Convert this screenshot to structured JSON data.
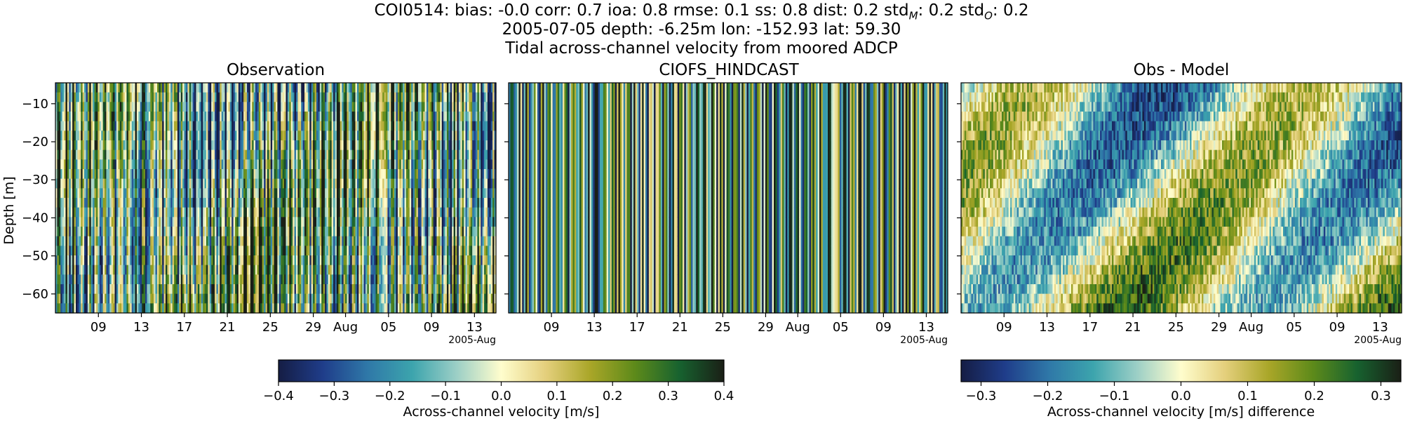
{
  "header": {
    "line1": "COI0514: bias: -0.0  corr: 0.7  ioa: 0.8  rmse: 0.1  ss: 0.8  dist: 0.2  std",
    "line1_sub_m": "M",
    "line1_mid": ": 0.2  std",
    "line1_sub_o": "O",
    "line1_end": ": 0.2",
    "line2": "2005-07-05 depth: -6.25m lon: -152.93 lat: 59.30",
    "line3": "Tidal across-channel velocity from moored ADCP"
  },
  "colors": {
    "cmap_stops": [
      "#151d44",
      "#1f3d8a",
      "#2f78a8",
      "#3ca4ad",
      "#9ccfc6",
      "#fffdcd",
      "#e4cf7c",
      "#a9a628",
      "#5d8a1a",
      "#17622f",
      "#1a1f16"
    ]
  },
  "chart_data": [
    {
      "type": "heatmap",
      "title": "Observation",
      "ylabel": "Depth [m]",
      "ylim": [
        -65,
        -4.5
      ],
      "yticks": [
        -10,
        -20,
        -30,
        -40,
        -50,
        -60
      ],
      "ytick_labels": [
        "−10",
        "−20",
        "−30",
        "−40",
        "−50",
        "−60"
      ],
      "xlim": [
        "2005-07-05",
        "2005-08-15"
      ],
      "xticks": [
        "2005-07-09",
        "2005-07-13",
        "2005-07-17",
        "2005-07-21",
        "2005-07-25",
        "2005-07-29",
        "2005-08-01",
        "2005-08-05",
        "2005-08-09",
        "2005-08-13"
      ],
      "xtick_labels": [
        "09",
        "13",
        "17",
        "21",
        "25",
        "29",
        "Aug",
        "05",
        "09",
        "13"
      ],
      "x_offset_label": "2005-Aug",
      "clim": [
        -0.4,
        0.4
      ]
    },
    {
      "type": "heatmap",
      "title": "CIOFS_HINDCAST",
      "ylim": [
        -65,
        -4.5
      ],
      "xlim": [
        "2005-07-05",
        "2005-08-15"
      ],
      "xtick_labels": [
        "09",
        "13",
        "17",
        "21",
        "25",
        "29",
        "Aug",
        "05",
        "09",
        "13"
      ],
      "x_offset_label": "2005-Aug",
      "clim": [
        -0.4,
        0.4
      ]
    },
    {
      "type": "heatmap",
      "title": "Obs - Model",
      "ylim": [
        -65,
        -4.5
      ],
      "xlim": [
        "2005-07-05",
        "2005-08-15"
      ],
      "xtick_labels": [
        "09",
        "13",
        "17",
        "21",
        "25",
        "29",
        "Aug",
        "05",
        "09",
        "13"
      ],
      "x_offset_label": "2005-Aug",
      "clim": [
        -0.33,
        0.33
      ]
    }
  ],
  "colorbars": [
    {
      "label": "Across-channel velocity [m/s]",
      "range": [
        -0.4,
        0.4
      ],
      "ticks": [
        -0.4,
        -0.3,
        -0.2,
        -0.1,
        0.0,
        0.1,
        0.2,
        0.3,
        0.4
      ],
      "tick_labels": [
        "−0.4",
        "−0.3",
        "−0.2",
        "−0.1",
        "0.0",
        "0.1",
        "0.2",
        "0.3",
        "0.4"
      ]
    },
    {
      "label": "Across-channel velocity [m/s] difference",
      "range": [
        -0.33,
        0.33
      ],
      "ticks": [
        -0.3,
        -0.2,
        -0.1,
        0.0,
        0.1,
        0.2,
        0.3
      ],
      "tick_labels": [
        "−0.3",
        "−0.2",
        "−0.1",
        "0.0",
        "0.1",
        "0.2",
        "0.3"
      ]
    }
  ]
}
